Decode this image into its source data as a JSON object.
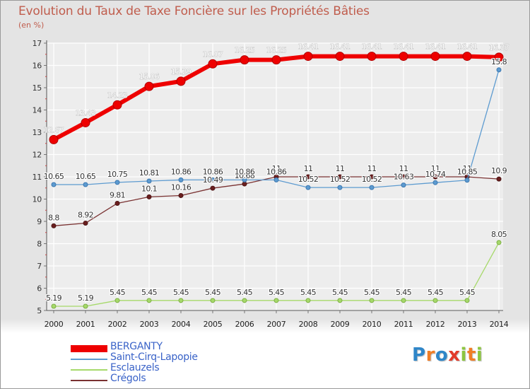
{
  "title": "Evolution du Taux de Taxe Foncière sur les Propriétés Bâties",
  "subtitle": "(en %)",
  "logo": {
    "text": "Proxiti",
    "letters": [
      "P",
      "r",
      "o",
      "x",
      "i",
      "t",
      "i"
    ],
    "colors": [
      "#2f86c8",
      "#f07e26",
      "#2f86c8",
      "#e23b2b",
      "#8dc63f",
      "#f07e26",
      "#8dc63f"
    ]
  },
  "chart_data": {
    "type": "line",
    "title": "Evolution du Taux de Taxe Foncière sur les Propriétés Bâties",
    "ylabel": "(en %)",
    "xlabel": "",
    "ylim": [
      5,
      17
    ],
    "yticks": [
      "5",
      "6",
      "7",
      "8",
      "9",
      "10",
      "11",
      "12",
      "13",
      "14",
      "15",
      "16",
      "17"
    ],
    "x": [
      "2000",
      "2001",
      "2002",
      "2003",
      "2004",
      "2005",
      "2006",
      "2007",
      "2008",
      "2009",
      "2010",
      "2011",
      "2012",
      "2013",
      "2014"
    ],
    "series": [
      {
        "name": "BERGANTY",
        "color": "#ee0000",
        "values": [
          12.67,
          13.43,
          14.23,
          15.06,
          15.29,
          16.07,
          16.25,
          16.25,
          16.41,
          16.41,
          16.41,
          16.41,
          16.41,
          16.41,
          16.37
        ],
        "labels": [
          "12.67",
          "13.43",
          "14.23",
          "15.06",
          "15.29",
          "16.07",
          "16.25",
          "16.25",
          "16.41",
          "16.41",
          "16.41",
          "16.41",
          "16.41",
          "16.41",
          "16.37"
        ]
      },
      {
        "name": "Saint-Cirq-Lapopie",
        "color": "#5d9bd0",
        "values": [
          10.65,
          10.65,
          10.75,
          10.81,
          10.86,
          10.86,
          10.86,
          10.86,
          10.52,
          10.52,
          10.52,
          10.63,
          10.74,
          10.85,
          15.8
        ],
        "labels": [
          "10.65",
          "10.65",
          "10.75",
          "10.81",
          "10.86",
          "10.86",
          "10.86",
          "10.86",
          "10.52",
          "10.52",
          "10.52",
          "10.63",
          "10.74",
          "10.85",
          "15.8"
        ]
      },
      {
        "name": "Esclauzels",
        "color": "#a6d96a",
        "values": [
          5.19,
          5.19,
          5.45,
          5.45,
          5.45,
          5.45,
          5.45,
          5.45,
          5.45,
          5.45,
          5.45,
          5.45,
          5.45,
          5.45,
          8.05
        ],
        "labels": [
          "5.19",
          "5.19",
          "5.45",
          "5.45",
          "5.45",
          "5.45",
          "5.45",
          "5.45",
          "5.45",
          "5.45",
          "5.45",
          "5.45",
          "5.45",
          "5.45",
          "8.05"
        ]
      },
      {
        "name": "Crégols",
        "color": "#7a3232",
        "values": [
          8.8,
          8.92,
          9.81,
          10.1,
          10.16,
          10.49,
          10.68,
          11,
          11,
          11,
          11,
          11,
          11,
          11,
          10.9
        ],
        "labels": [
          "8.8",
          "8.92",
          "9.81",
          "10.1",
          "10.16",
          "10.49",
          "10.68",
          "11",
          "11",
          "11",
          "11",
          "11",
          "11",
          "11",
          "10.9"
        ]
      }
    ],
    "legend_position": "bottom-left"
  }
}
